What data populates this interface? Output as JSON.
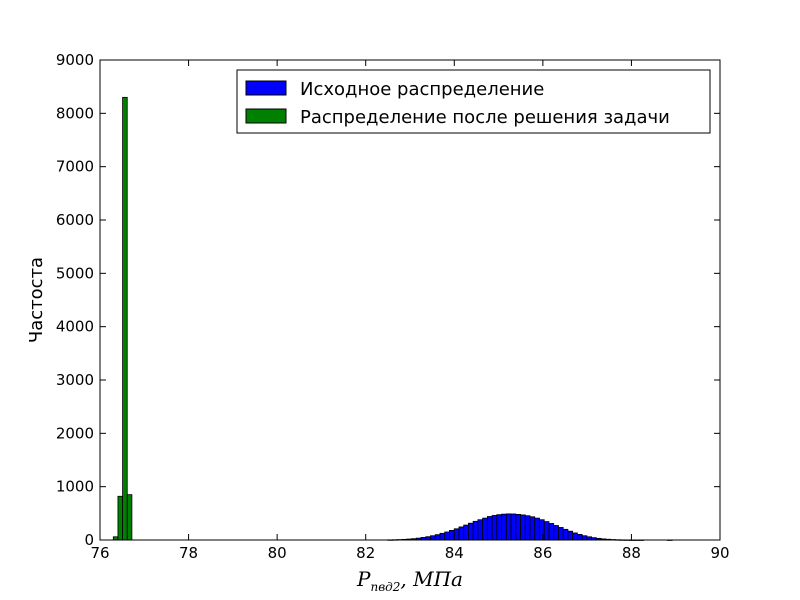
{
  "chart_data": {
    "type": "bar",
    "title": "",
    "xlabel": {
      "main": "P",
      "sub": "пвд2",
      "unit": "МПа"
    },
    "ylabel": "Частоста",
    "xlim": [
      76,
      90
    ],
    "ylim": [
      0,
      9000
    ],
    "xticks": [
      "76",
      "78",
      "80",
      "82",
      "84",
      "86",
      "88",
      "90"
    ],
    "yticks": [
      "0",
      "1000",
      "2000",
      "3000",
      "4000",
      "5000",
      "6000",
      "7000",
      "8000",
      "9000"
    ],
    "grid": false,
    "legend_position": "top-right",
    "series": [
      {
        "name": "Исходное распределение",
        "color": "#0000ff",
        "bin_start": 82.5,
        "bin_width": 0.107,
        "values": [
          3,
          5,
          8,
          12,
          18,
          25,
          35,
          48,
          62,
          80,
          100,
          125,
          150,
          180,
          210,
          245,
          280,
          315,
          350,
          380,
          410,
          440,
          460,
          475,
          485,
          490,
          488,
          480,
          470,
          455,
          435,
          410,
          380,
          345,
          310,
          272,
          235,
          200,
          165,
          132,
          105,
          80,
          60,
          44,
          31,
          21,
          14,
          9,
          5,
          3,
          2,
          1,
          1,
          1,
          0,
          0,
          0,
          0,
          0,
          1
        ]
      },
      {
        "name": "Распределение после решения задачи",
        "color": "#008000",
        "bin_start": 76.3,
        "bin_width": 0.105,
        "values": [
          60,
          820,
          8300,
          850
        ]
      }
    ]
  }
}
